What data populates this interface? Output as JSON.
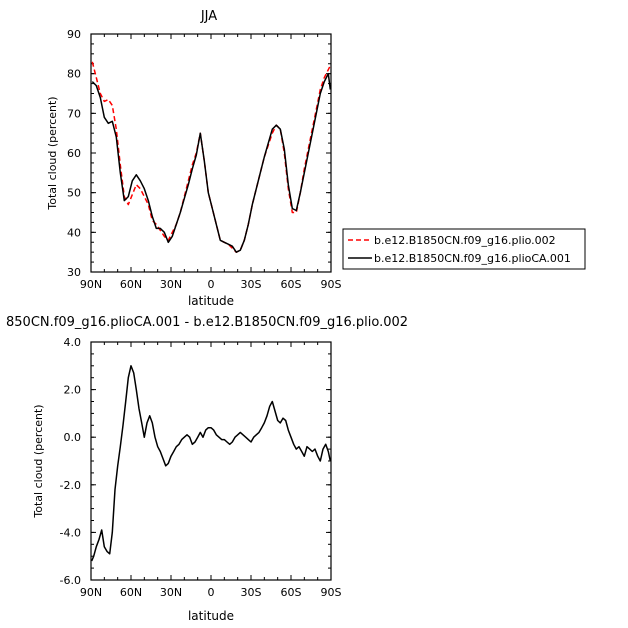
{
  "chart_data": [
    {
      "type": "line",
      "title": "JJA",
      "xlabel": "latitude",
      "ylabel": "Total cloud (percent)",
      "xlim": [
        90,
        -90
      ],
      "ylim": [
        30,
        90
      ],
      "x_ticks": [
        90,
        60,
        30,
        0,
        -30,
        -60,
        -90
      ],
      "x_tick_labels": [
        "90N",
        "60N",
        "30N",
        "0",
        "30S",
        "60S",
        "90S"
      ],
      "y_ticks": [
        30,
        40,
        50,
        60,
        70,
        80,
        90
      ],
      "y_tick_labels": [
        "30",
        "40",
        "50",
        "60",
        "70",
        "80",
        "90"
      ],
      "legend_position": "right",
      "series": [
        {
          "name": "b.e12.B1850CN.f09_g16.plio.002",
          "color": "#ff0000",
          "dash": "dashed",
          "x": [
            89,
            86,
            83,
            80,
            77,
            74,
            71,
            68,
            65,
            62,
            59,
            56,
            53,
            50,
            47,
            44,
            41,
            38,
            35,
            32,
            29,
            26,
            23,
            20,
            17,
            14,
            11,
            8,
            5,
            2,
            -1,
            -4,
            -7,
            -10,
            -13,
            -16,
            -19,
            -22,
            -25,
            -28,
            -31,
            -34,
            -37,
            -40,
            -43,
            -46,
            -49,
            -52,
            -55,
            -58,
            -61,
            -64,
            -67,
            -70,
            -73,
            -76,
            -79,
            -82,
            -85,
            -88,
            -89.5
          ],
          "y": [
            83,
            79,
            75,
            73,
            73.5,
            72,
            66,
            57,
            49,
            47,
            49.5,
            52,
            51,
            49,
            47,
            43,
            42,
            40.5,
            39,
            38,
            40,
            42,
            45,
            49,
            53,
            57,
            60,
            65,
            58,
            50,
            46,
            42,
            38,
            37.5,
            37,
            36,
            35,
            35.5,
            38,
            42,
            47,
            51,
            55,
            59,
            62,
            65,
            67,
            66,
            60,
            51,
            45,
            45,
            50,
            56,
            61,
            66,
            71,
            76,
            79,
            81,
            82
          ]
        },
        {
          "name": "b.e12.B1850CN.f09_g16.plioCA.001",
          "color": "#000000",
          "dash": "solid",
          "x": [
            89,
            86,
            83,
            80,
            77,
            74,
            71,
            68,
            65,
            62,
            59,
            56,
            53,
            50,
            47,
            44,
            41,
            38,
            35,
            32,
            29,
            26,
            23,
            20,
            17,
            14,
            11,
            8,
            5,
            2,
            -1,
            -4,
            -7,
            -10,
            -13,
            -16,
            -19,
            -22,
            -25,
            -28,
            -31,
            -34,
            -37,
            -40,
            -43,
            -46,
            -49,
            -52,
            -55,
            -58,
            -61,
            -64,
            -67,
            -70,
            -73,
            -76,
            -79,
            -82,
            -85,
            -88,
            -89.5
          ],
          "y": [
            78,
            77,
            74,
            69,
            67.5,
            68,
            64,
            55,
            48,
            49,
            53,
            54.5,
            53,
            51,
            48,
            44,
            41,
            41,
            40,
            37.5,
            39,
            42,
            45,
            48.5,
            52,
            56,
            59.5,
            65,
            58,
            50,
            46,
            42,
            38,
            37.5,
            37,
            36.5,
            35,
            35.5,
            38,
            42,
            47,
            51,
            55,
            59,
            62.5,
            66,
            67,
            66,
            61,
            52,
            46,
            45.5,
            50,
            55,
            60,
            65,
            70,
            75,
            78,
            80,
            76
          ]
        }
      ]
    },
    {
      "type": "line",
      "title": "850CN.f09_g16.plioCA.001 - b.e12.B1850CN.f09_g16.plio.002",
      "xlabel": "latitude",
      "ylabel": "Total cloud (percent)",
      "xlim": [
        90,
        -90
      ],
      "ylim": [
        -6,
        4
      ],
      "x_ticks": [
        90,
        60,
        30,
        0,
        -30,
        -60,
        -90
      ],
      "x_tick_labels": [
        "90N",
        "60N",
        "30N",
        "0",
        "30S",
        "60S",
        "90S"
      ],
      "y_ticks": [
        -6,
        -4,
        -2,
        0,
        2,
        4
      ],
      "y_tick_labels": [
        "-6.0",
        "-4.0",
        "-2.0",
        "0.0",
        "2.0",
        "4.0"
      ],
      "series": [
        {
          "color": "#000000",
          "dash": "solid",
          "x": [
            89.5,
            88,
            86,
            84,
            82,
            80,
            78,
            76,
            74,
            72,
            70,
            68,
            66,
            64,
            62,
            60,
            58,
            56,
            54,
            52,
            50,
            48,
            46,
            44,
            42,
            40,
            38,
            36,
            34,
            32,
            30,
            28,
            26,
            24,
            22,
            20,
            18,
            16,
            14,
            12,
            10,
            8,
            6,
            4,
            2,
            0,
            -2,
            -4,
            -6,
            -8,
            -10,
            -12,
            -14,
            -16,
            -18,
            -20,
            -22,
            -24,
            -26,
            -28,
            -30,
            -32,
            -34,
            -36,
            -38,
            -40,
            -42,
            -44,
            -46,
            -48,
            -50,
            -52,
            -54,
            -56,
            -58,
            -60,
            -62,
            -64,
            -66,
            -68,
            -70,
            -72,
            -74,
            -76,
            -78,
            -80,
            -82,
            -84,
            -86,
            -88,
            -89.5
          ],
          "y": [
            -5.2,
            -5.0,
            -4.6,
            -4.3,
            -3.9,
            -4.6,
            -4.8,
            -4.9,
            -4.0,
            -2.2,
            -1.2,
            -0.4,
            0.5,
            1.5,
            2.5,
            3.0,
            2.7,
            2.0,
            1.2,
            0.6,
            0.0,
            0.6,
            0.9,
            0.6,
            0.0,
            -0.4,
            -0.6,
            -0.9,
            -1.2,
            -1.1,
            -0.8,
            -0.6,
            -0.4,
            -0.3,
            -0.1,
            0.0,
            0.1,
            0.0,
            -0.3,
            -0.2,
            0.0,
            0.2,
            0.0,
            0.3,
            0.4,
            0.4,
            0.3,
            0.1,
            0.0,
            -0.1,
            -0.1,
            -0.2,
            -0.3,
            -0.2,
            0.0,
            0.1,
            0.2,
            0.1,
            0.0,
            -0.1,
            -0.2,
            0.0,
            0.1,
            0.2,
            0.4,
            0.6,
            0.9,
            1.3,
            1.5,
            1.1,
            0.7,
            0.6,
            0.8,
            0.7,
            0.3,
            0.0,
            -0.3,
            -0.5,
            -0.4,
            -0.6,
            -0.8,
            -0.4,
            -0.5,
            -0.6,
            -0.5,
            -0.8,
            -1.0,
            -0.5,
            -0.3,
            -0.6,
            -1.0
          ]
        }
      ]
    }
  ]
}
